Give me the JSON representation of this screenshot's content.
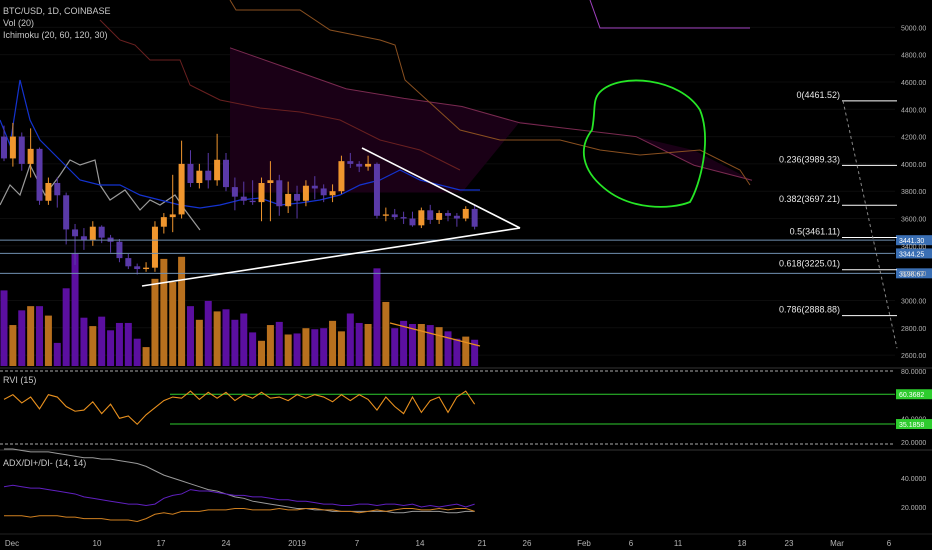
{
  "header": {
    "symbol": "BTC/USD, 1D, COINBASE",
    "vol_label": "Vol (20)",
    "ichimoku_label": "Ichimoku (20, 60, 120, 30)",
    "rvi_label": "RVI (15)",
    "adx_label": "ADX/DI+/DI- (14, 14)"
  },
  "colors": {
    "up": "#f0962e",
    "down": "#5a3aa8",
    "vol_up": "#b8701e",
    "vol_down": "#5b0fa0",
    "tenkan": "#1433d0",
    "lagging": "#9a9a9a",
    "cloud": "#1a0016",
    "fib_line": "#ffffff",
    "hline": "#6f8fb0",
    "price_tag": "#3a6fb4",
    "rvi": "#e8901e",
    "rvi_band": "#2ecc2e",
    "circle": "#26e626"
  },
  "chart_data": {
    "type": "candlestick",
    "title": "BTC/USD, 1D, COINBASE",
    "price_axis": {
      "range": [
        2520,
        5200
      ],
      "ticks": [
        "5000.00",
        "4800.00",
        "4600.00",
        "4400.00",
        "4200.00",
        "4000.00",
        "3800.00",
        "3600.00",
        "3400.00",
        "3200.00",
        "3000.00",
        "2800.00",
        "2600.00"
      ]
    },
    "x_ticks": [
      "Dec",
      "10",
      "17",
      "24",
      "2019",
      "7",
      "14",
      "21",
      "26",
      "Feb",
      "6",
      "11",
      "18",
      "23",
      "Mar",
      "6"
    ],
    "candles": [
      {
        "o": 4200,
        "h": 4280,
        "l": 4020,
        "c": 4040
      },
      {
        "o": 4040,
        "h": 4300,
        "l": 3980,
        "c": 4200
      },
      {
        "o": 4200,
        "h": 4230,
        "l": 3950,
        "c": 4000
      },
      {
        "o": 4000,
        "h": 4260,
        "l": 3900,
        "c": 4110
      },
      {
        "o": 4110,
        "h": 4120,
        "l": 3700,
        "c": 3730
      },
      {
        "o": 3730,
        "h": 3900,
        "l": 3700,
        "c": 3860
      },
      {
        "o": 3860,
        "h": 3900,
        "l": 3680,
        "c": 3770
      },
      {
        "o": 3770,
        "h": 3790,
        "l": 3410,
        "c": 3520
      },
      {
        "o": 3520,
        "h": 3560,
        "l": 3260,
        "c": 3470
      },
      {
        "o": 3470,
        "h": 3530,
        "l": 3370,
        "c": 3440
      },
      {
        "o": 3440,
        "h": 3580,
        "l": 3400,
        "c": 3540
      },
      {
        "o": 3540,
        "h": 3550,
        "l": 3420,
        "c": 3460
      },
      {
        "o": 3460,
        "h": 3480,
        "l": 3350,
        "c": 3430
      },
      {
        "o": 3430,
        "h": 3450,
        "l": 3280,
        "c": 3310
      },
      {
        "o": 3310,
        "h": 3340,
        "l": 3230,
        "c": 3250
      },
      {
        "o": 3250,
        "h": 3270,
        "l": 3190,
        "c": 3230
      },
      {
        "o": 3230,
        "h": 3280,
        "l": 3210,
        "c": 3240
      },
      {
        "o": 3240,
        "h": 3580,
        "l": 3210,
        "c": 3540
      },
      {
        "o": 3540,
        "h": 3640,
        "l": 3490,
        "c": 3610
      },
      {
        "o": 3610,
        "h": 3920,
        "l": 3500,
        "c": 3630
      },
      {
        "o": 3630,
        "h": 4170,
        "l": 3600,
        "c": 4000
      },
      {
        "o": 4000,
        "h": 4100,
        "l": 3830,
        "c": 3860
      },
      {
        "o": 3860,
        "h": 4000,
        "l": 3820,
        "c": 3950
      },
      {
        "o": 3950,
        "h": 4080,
        "l": 3820,
        "c": 3880
      },
      {
        "o": 3880,
        "h": 4220,
        "l": 3840,
        "c": 4030
      },
      {
        "o": 4030,
        "h": 4080,
        "l": 3800,
        "c": 3830
      },
      {
        "o": 3830,
        "h": 3900,
        "l": 3660,
        "c": 3760
      },
      {
        "o": 3760,
        "h": 3870,
        "l": 3700,
        "c": 3730
      },
      {
        "o": 3730,
        "h": 3880,
        "l": 3700,
        "c": 3720
      },
      {
        "o": 3720,
        "h": 3900,
        "l": 3580,
        "c": 3860
      },
      {
        "o": 3860,
        "h": 4020,
        "l": 3580,
        "c": 3880
      },
      {
        "o": 3880,
        "h": 3920,
        "l": 3620,
        "c": 3690
      },
      {
        "o": 3690,
        "h": 3870,
        "l": 3640,
        "c": 3780
      },
      {
        "o": 3780,
        "h": 3840,
        "l": 3600,
        "c": 3730
      },
      {
        "o": 3730,
        "h": 3880,
        "l": 3690,
        "c": 3840
      },
      {
        "o": 3840,
        "h": 3910,
        "l": 3740,
        "c": 3820
      },
      {
        "o": 3820,
        "h": 3850,
        "l": 3720,
        "c": 3770
      },
      {
        "o": 3770,
        "h": 3850,
        "l": 3720,
        "c": 3800
      },
      {
        "o": 3800,
        "h": 4060,
        "l": 3780,
        "c": 4020
      },
      {
        "o": 4020,
        "h": 4080,
        "l": 3970,
        "c": 4000
      },
      {
        "o": 4000,
        "h": 4020,
        "l": 3940,
        "c": 3980
      },
      {
        "o": 3980,
        "h": 4060,
        "l": 3950,
        "c": 4000
      },
      {
        "o": 4000,
        "h": 4010,
        "l": 3600,
        "c": 3620
      },
      {
        "o": 3620,
        "h": 3680,
        "l": 3580,
        "c": 3630
      },
      {
        "o": 3630,
        "h": 3670,
        "l": 3590,
        "c": 3610
      },
      {
        "o": 3610,
        "h": 3650,
        "l": 3560,
        "c": 3600
      },
      {
        "o": 3600,
        "h": 3650,
        "l": 3540,
        "c": 3550
      },
      {
        "o": 3550,
        "h": 3680,
        "l": 3530,
        "c": 3660
      },
      {
        "o": 3660,
        "h": 3700,
        "l": 3560,
        "c": 3590
      },
      {
        "o": 3590,
        "h": 3660,
        "l": 3560,
        "c": 3640
      },
      {
        "o": 3640,
        "h": 3660,
        "l": 3580,
        "c": 3620
      },
      {
        "o": 3620,
        "h": 3640,
        "l": 3540,
        "c": 3600
      },
      {
        "o": 3600,
        "h": 3690,
        "l": 3580,
        "c": 3670
      },
      {
        "o": 3670,
        "h": 3700,
        "l": 3520,
        "c": 3540
      }
    ],
    "volume": [
      72,
      39,
      53,
      57,
      57,
      48,
      22,
      74,
      107,
      46,
      38,
      47,
      34,
      41,
      41,
      26,
      18,
      83,
      102,
      80,
      104,
      57,
      44,
      62,
      52,
      54,
      44,
      50,
      32,
      24,
      39,
      42,
      30,
      31,
      36,
      35,
      36,
      43,
      33,
      50,
      41,
      40,
      93,
      61,
      36,
      43,
      40,
      40,
      39,
      37,
      33,
      26,
      28,
      25
    ],
    "fib_levels": [
      {
        "label": "0(4461.52)",
        "price": 4461.52
      },
      {
        "label": "0.236(3989.33)",
        "price": 3989.33
      },
      {
        "label": "0.382(3697.21)",
        "price": 3697.21
      },
      {
        "label": "0.5(3461.11)",
        "price": 3461.11
      },
      {
        "label": "0.618(3225.01)",
        "price": 3225.01
      },
      {
        "label": "0.786(2888.88)",
        "price": 2888.88
      }
    ],
    "price_tags": [
      {
        "label": "3441.30",
        "price": 3441.3
      },
      {
        "label": "3344.25",
        "price": 3344.25
      },
      {
        "label": "3198.67",
        "price": 3198.67
      }
    ],
    "triangle": {
      "upper": [
        [
          3960,
          4080
        ],
        [
          3980,
          3580
        ]
      ],
      "lower": [
        [
          3765,
          3190
        ],
        [
          3980,
          3580
        ]
      ]
    },
    "ichimoku_cloud": [
      [
        3790,
        4850
      ],
      [
        3790,
        4700
      ],
      [
        3790,
        4550
      ],
      [
        3790,
        4480
      ],
      [
        3790,
        4420
      ],
      [
        4310,
        4300
      ],
      [
        4250,
        4250
      ],
      [
        4200,
        4200
      ],
      [
        4100,
        3990
      ],
      [
        3880,
        3880
      ]
    ],
    "rvi": {
      "axis_ticks": [
        "80.0000",
        "40.0000",
        "20.0000"
      ],
      "levels": [
        {
          "label": "60.3682",
          "value": 60.3682
        },
        {
          "label": "35.1858",
          "value": 35.1858
        }
      ],
      "values": [
        56,
        60,
        53,
        58,
        48,
        60,
        58,
        50,
        46,
        47,
        54,
        44,
        52,
        40,
        42,
        35,
        43,
        49,
        55,
        58,
        57,
        63,
        56,
        62,
        57,
        62,
        55,
        60,
        57,
        62,
        57,
        58,
        55,
        60,
        57,
        60,
        58,
        54,
        60,
        55,
        60,
        56,
        47,
        58,
        50,
        44,
        58,
        45,
        55,
        58,
        45,
        58,
        63,
        52
      ]
    },
    "adx": {
      "axis_ticks": [
        "40.0000",
        "20.0000"
      ],
      "adx": [
        60,
        60,
        59,
        58,
        58,
        58,
        57,
        56,
        55,
        54,
        54,
        53,
        53,
        52,
        51,
        50,
        48,
        45,
        42,
        40,
        38,
        36,
        34,
        32,
        31,
        29,
        27,
        26,
        24,
        23,
        22,
        21,
        20,
        19,
        19,
        18,
        18,
        17,
        17,
        17,
        17,
        17,
        17,
        17,
        16,
        16,
        17,
        17,
        17,
        17,
        16,
        16,
        17,
        17
      ],
      "di_plus": [
        34,
        35,
        34,
        33,
        33,
        32,
        31,
        30,
        29,
        27,
        26,
        25,
        24,
        23,
        22,
        22,
        21,
        22,
        26,
        28,
        29,
        32,
        31,
        31,
        30,
        29,
        28,
        28,
        27,
        27,
        26,
        25,
        25,
        24,
        24,
        23,
        22,
        22,
        21,
        21,
        22,
        22,
        21,
        22,
        22,
        21,
        22,
        20,
        21,
        20,
        21,
        22,
        20,
        22
      ],
      "di_minus": [
        14,
        14,
        14,
        13,
        14,
        14,
        14,
        13,
        13,
        12,
        12,
        12,
        11,
        11,
        11,
        10,
        12,
        15,
        16,
        15,
        17,
        17,
        17,
        18,
        18,
        18,
        19,
        19,
        18,
        18,
        18,
        19,
        18,
        18,
        19,
        19,
        18,
        18,
        17,
        17,
        16,
        17,
        18,
        17,
        18,
        19,
        19,
        18,
        18,
        19,
        18,
        19,
        19,
        17
      ]
    }
  }
}
